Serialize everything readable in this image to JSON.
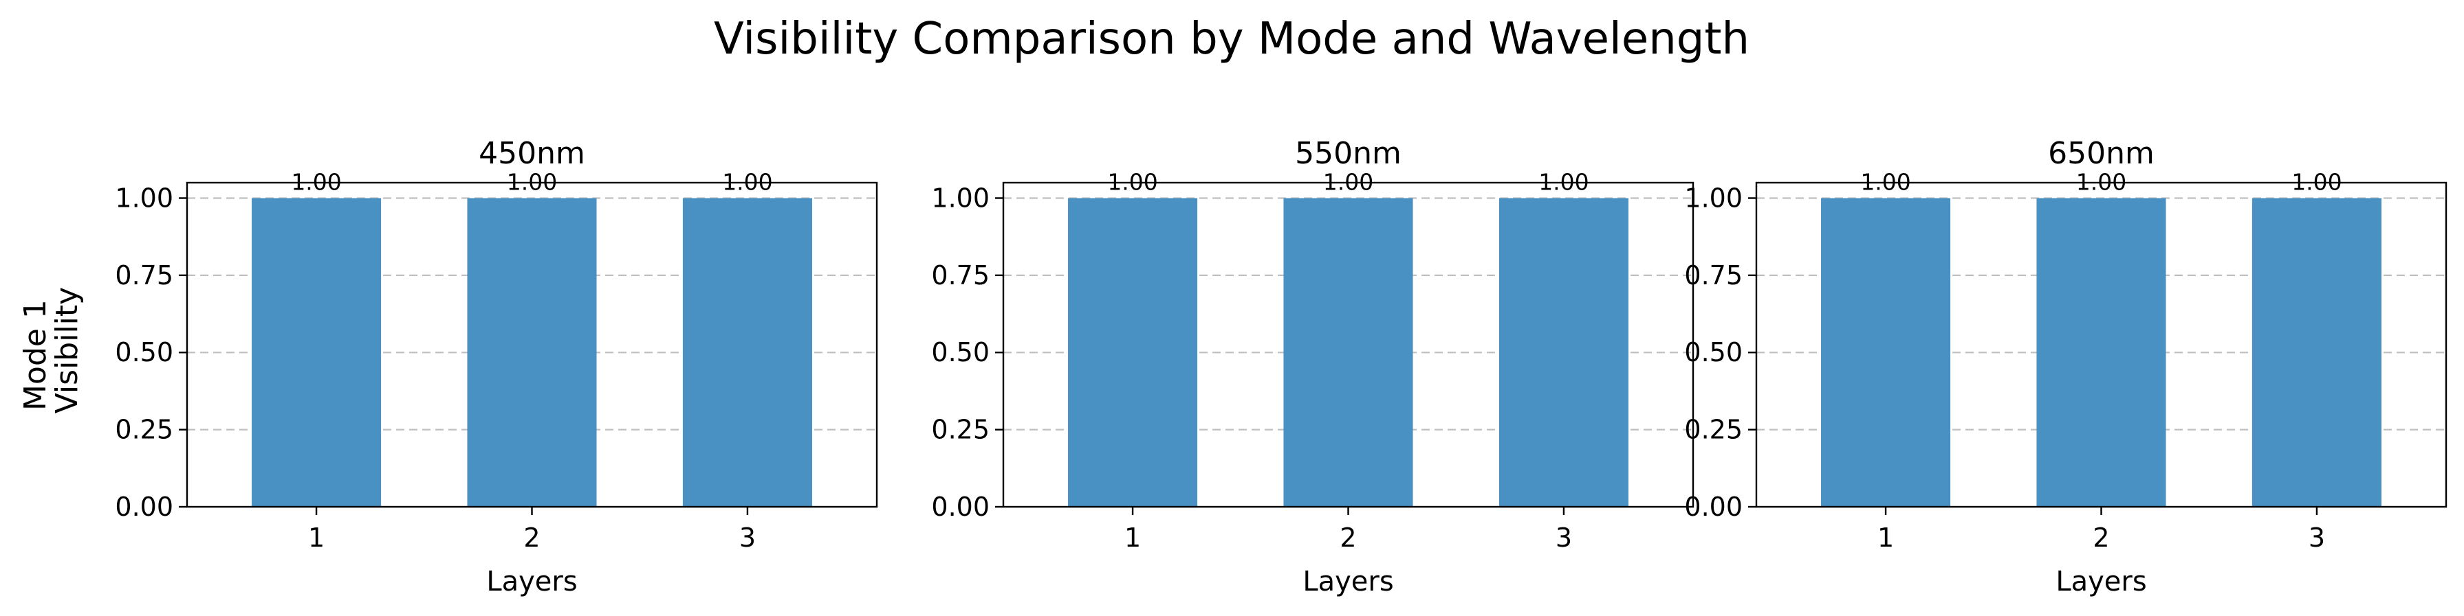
{
  "figure": {
    "title": "Visibility Comparison by Mode and Wavelength",
    "ylabel_lines": [
      "Mode 1",
      "Visibility"
    ]
  },
  "chart_data": [
    {
      "type": "bar",
      "title": "450nm",
      "xlabel": "Layers",
      "ylabel": "Mode 1 Visibility",
      "categories": [
        "1",
        "2",
        "3"
      ],
      "values": [
        1.0,
        1.0,
        1.0
      ],
      "value_labels": [
        "1.00",
        "1.00",
        "1.00"
      ],
      "ylim": [
        0,
        1.05
      ],
      "yticks": [
        "0.00",
        "0.25",
        "0.50",
        "0.75",
        "1.00"
      ],
      "grid": "y-dashed",
      "bar_color": "#4a91c3"
    },
    {
      "type": "bar",
      "title": "550nm",
      "xlabel": "Layers",
      "ylabel": "",
      "categories": [
        "1",
        "2",
        "3"
      ],
      "values": [
        1.0,
        1.0,
        1.0
      ],
      "value_labels": [
        "1.00",
        "1.00",
        "1.00"
      ],
      "ylim": [
        0,
        1.05
      ],
      "yticks": [
        "0.00",
        "0.25",
        "0.50",
        "0.75",
        "1.00"
      ],
      "grid": "y-dashed",
      "bar_color": "#4a91c3"
    },
    {
      "type": "bar",
      "title": "650nm",
      "xlabel": "Layers",
      "ylabel": "",
      "categories": [
        "1",
        "2",
        "3"
      ],
      "values": [
        1.0,
        1.0,
        1.0
      ],
      "value_labels": [
        "1.00",
        "1.00",
        "1.00"
      ],
      "ylim": [
        0,
        1.05
      ],
      "yticks": [
        "0.00",
        "0.25",
        "0.50",
        "0.75",
        "1.00"
      ],
      "grid": "y-dashed",
      "bar_color": "#4a91c3"
    }
  ]
}
